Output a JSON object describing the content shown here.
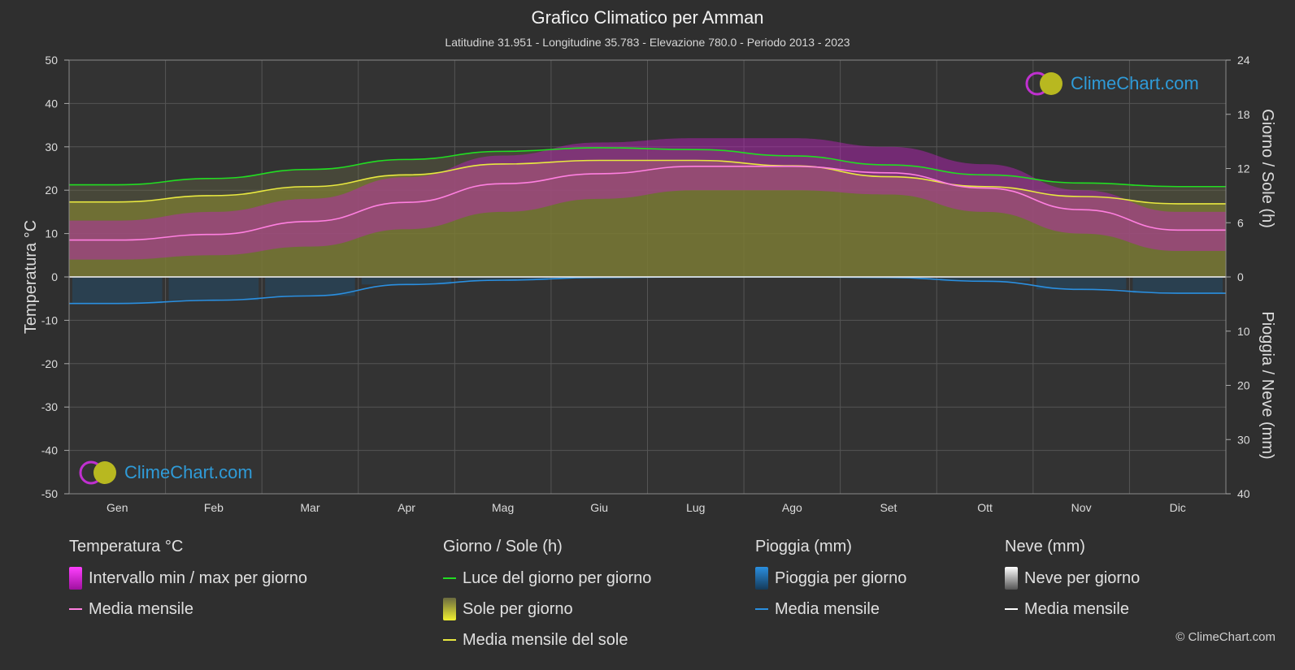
{
  "header": {
    "title": "Grafico Climatico per Amman",
    "subtitle": "Latitudine 31.951 - Longitudine 35.783 - Elevazione 780.0 - Periodo 2013 - 2023"
  },
  "logo_text": "ClimeChart.com",
  "copyright": "© ClimeChart.com",
  "colors": {
    "background": "#2f2f2f",
    "temp_range": "#d020d0",
    "temp_mean": "#ff7fe0",
    "daylight": "#22dd22",
    "sunshine_fill": "#8a8a2a",
    "sunshine_mean": "#e8e840",
    "rain": "#1a82c8",
    "rain_mean": "#2a8fe0",
    "snow_mean": "#ffffff",
    "logo": "#2f9bd8"
  },
  "chart_data": {
    "type": "area",
    "x": {
      "categories": [
        "Gen",
        "Feb",
        "Mar",
        "Apr",
        "Mag",
        "Giu",
        "Lug",
        "Ago",
        "Set",
        "Ott",
        "Nov",
        "Dic"
      ]
    },
    "axes": {
      "left": {
        "label": "Temperatura °C",
        "range": [
          -50,
          50
        ],
        "ticks": [
          50,
          40,
          30,
          20,
          10,
          0,
          -10,
          -20,
          -30,
          -40,
          -50
        ]
      },
      "right_top": {
        "label": "Giorno / Sole (h)",
        "range": [
          0,
          24
        ],
        "ticks": [
          24,
          18,
          12,
          6,
          0
        ]
      },
      "right_bottom": {
        "label": "Pioggia / Neve (mm)",
        "range": [
          0,
          40
        ],
        "ticks": [
          10,
          20,
          30,
          40
        ]
      }
    },
    "grid": true,
    "series": [
      {
        "name": "Media mensile",
        "group": "Temperatura °C",
        "values": [
          8.5,
          9.8,
          12.8,
          17.2,
          21.5,
          23.8,
          25.5,
          25.5,
          24.0,
          20.5,
          15.5,
          10.8
        ]
      },
      {
        "name": "Luce del giorno per giorno",
        "group": "Giorno / Sole (h)",
        "values": [
          10.2,
          10.9,
          11.9,
          13.0,
          13.9,
          14.3,
          14.1,
          13.4,
          12.4,
          11.3,
          10.4,
          10.0
        ]
      },
      {
        "name": "Media mensile del sole",
        "group": "Giorno / Sole (h)",
        "values": [
          8.3,
          9.0,
          10.0,
          11.3,
          12.5,
          12.9,
          12.9,
          12.3,
          11.1,
          10.0,
          8.9,
          8.1
        ]
      },
      {
        "name": "Media mensile",
        "group": "Pioggia (mm)",
        "values": [
          4.9,
          4.3,
          3.5,
          1.4,
          0.6,
          0.1,
          0.0,
          0.0,
          0.1,
          0.8,
          2.3,
          3.0
        ]
      },
      {
        "name": "Media mensile",
        "group": "Neve (mm)",
        "values": [
          0.0,
          0.0,
          0.0,
          0.0,
          0.0,
          0.0,
          0.0,
          0.0,
          0.0,
          0.0,
          0.0,
          0.0
        ]
      }
    ],
    "temp_range_monthly": {
      "min": [
        4,
        5,
        7,
        11,
        15,
        18,
        20,
        20,
        19,
        15,
        10,
        6
      ],
      "max": [
        13,
        15,
        18,
        23,
        28,
        31,
        32,
        32,
        30,
        26,
        20,
        15
      ]
    }
  },
  "legend": [
    {
      "title": "Temperatura °C",
      "items": [
        {
          "label": "Intervallo min / max per giorno",
          "kind": "swatch",
          "color": "#d020d0"
        },
        {
          "label": "Media mensile",
          "kind": "line",
          "color": "#ff7fe0"
        }
      ]
    },
    {
      "title": "Giorno / Sole (h)",
      "items": [
        {
          "label": "Luce del giorno per giorno",
          "kind": "line",
          "color": "#22dd22"
        },
        {
          "label": "Sole per giorno",
          "kind": "swatch",
          "color": "#d8d830"
        },
        {
          "label": "Media mensile del sole",
          "kind": "line",
          "color": "#e8e840"
        }
      ]
    },
    {
      "title": "Pioggia (mm)",
      "items": [
        {
          "label": "Pioggia per giorno",
          "kind": "swatch",
          "color": "#1a82c8"
        },
        {
          "label": "Media mensile",
          "kind": "line",
          "color": "#2a8fe0"
        }
      ]
    },
    {
      "title": "Neve (mm)",
      "items": [
        {
          "label": "Neve per giorno",
          "kind": "swatch",
          "color": "#dddddd"
        },
        {
          "label": "Media mensile",
          "kind": "line",
          "color": "#ffffff"
        }
      ]
    }
  ]
}
